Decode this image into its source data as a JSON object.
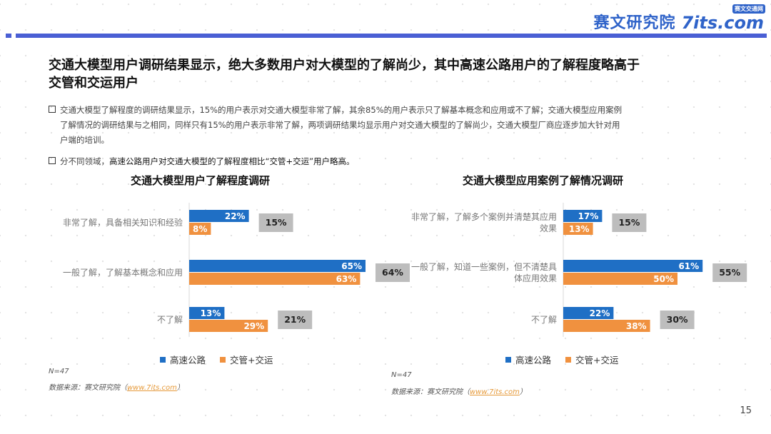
{
  "brand": {
    "name_cn": "赛文研究院",
    "name_en": "7its.com",
    "tag": "赛文交通网"
  },
  "headline_lines": [
    "交通大模型用户调研结果显示，绝大多数用户对大模型的了解尚少，其中高速公路用户的了解程度略高于",
    "交管和交运用户"
  ],
  "bullets": [
    {
      "lines": [
        "交通大模型了解程度的调研结果显示，15%的用户表示对交通大模型非常了解，其余85%的用户表示只了解基本概念和应用或不了解；交通大模型应用案例",
        "了解情况的调研结果与之相同，同样只有15%的用户表示非常了解，两项调研结果均显示用户对交通大模型的了解尚少，交通大模型厂商应逐步加大针对用",
        "户端的培训。"
      ]
    },
    {
      "prefix": "分不同领域，",
      "emphasis": "高速公路用户对交通大模型的了解程度相比“交管+交运”用户略高。"
    }
  ],
  "colors": {
    "highway": "#1f6fc5",
    "traffic": "#f0913f",
    "overall": "#bdbdbd",
    "brand_bar": "#4a5fd4"
  },
  "chart_data": [
    {
      "type": "bar",
      "title": "交通大模型用户了解程度调研",
      "categories": [
        "非常了解，具备相关知识和经验",
        "一般了解，了解基本概念和应用",
        "不了解"
      ],
      "series": [
        {
          "name": "高速公路",
          "values": [
            22,
            65,
            13
          ]
        },
        {
          "name": "交管+交运",
          "values": [
            8,
            63,
            29
          ]
        }
      ],
      "overall_values": [
        15,
        64,
        21
      ],
      "unit": "%",
      "legend": "bottom",
      "note": "N=47",
      "source_prefix": "数据来源：赛文研究院（",
      "source_link": "www.7its.com",
      "source_suffix": "）"
    },
    {
      "type": "bar",
      "title": "交通大模型应用案例了解情况调研",
      "categories": [
        "非常了解，了解多个案例并清楚其应用效果",
        "一般了解，知道一些案例，但不清楚具体应用效果",
        "不了解"
      ],
      "category_lines": [
        [
          "非常了解，了解多个案例并清楚其应用",
          "效果"
        ],
        [
          "一般了解，知道一些案例，但不清楚具",
          "体应用效果"
        ],
        [
          "不了解"
        ]
      ],
      "series": [
        {
          "name": "高速公路",
          "values": [
            17,
            61,
            22
          ]
        },
        {
          "name": "交管+交运",
          "values": [
            13,
            50,
            38
          ]
        }
      ],
      "overall_values": [
        15,
        55,
        30
      ],
      "unit": "%",
      "legend": "bottom",
      "note": "N=47",
      "source_prefix": "数据来源：赛文研究院（",
      "source_link": "www.7its.com",
      "source_suffix": "）"
    }
  ],
  "page_number": "15"
}
